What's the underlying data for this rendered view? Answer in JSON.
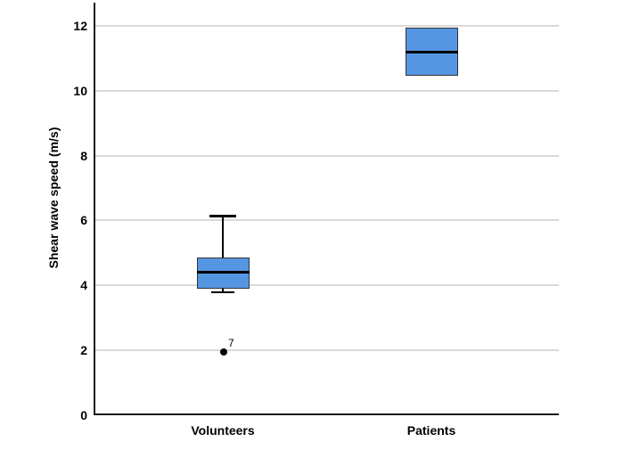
{
  "chart_data": {
    "type": "boxplot",
    "title": "",
    "ylabel": "Shear wave speed (m/s)",
    "xlabel": "",
    "categories": [
      "Volunteers",
      "Patients"
    ],
    "yticks": [
      0,
      2,
      4,
      6,
      8,
      10,
      12
    ],
    "ylim": [
      0,
      12.8
    ],
    "grid": "horizontal",
    "legend": "none",
    "series": [
      {
        "name": "Volunteers",
        "whisker_low": 3.8,
        "q1": 3.9,
        "median": 4.4,
        "q3": 4.85,
        "whisker_high": 6.15,
        "outliers": [
          {
            "value": 1.95,
            "label": "7"
          }
        ]
      },
      {
        "name": "Patients",
        "whisker_low": 10.45,
        "q1": 10.45,
        "median": 11.2,
        "q3": 11.95,
        "whisker_high": 11.95,
        "outliers": []
      }
    ],
    "colors": {
      "box_fill": "#5596E3",
      "box_border": "#333333",
      "median": "#000000",
      "whisker": "#000000",
      "outlier": "#000000",
      "gridline": "#D9D9D9",
      "axis": "#1A1A1A",
      "text": "#000000",
      "background": "#FFFFFF"
    }
  }
}
